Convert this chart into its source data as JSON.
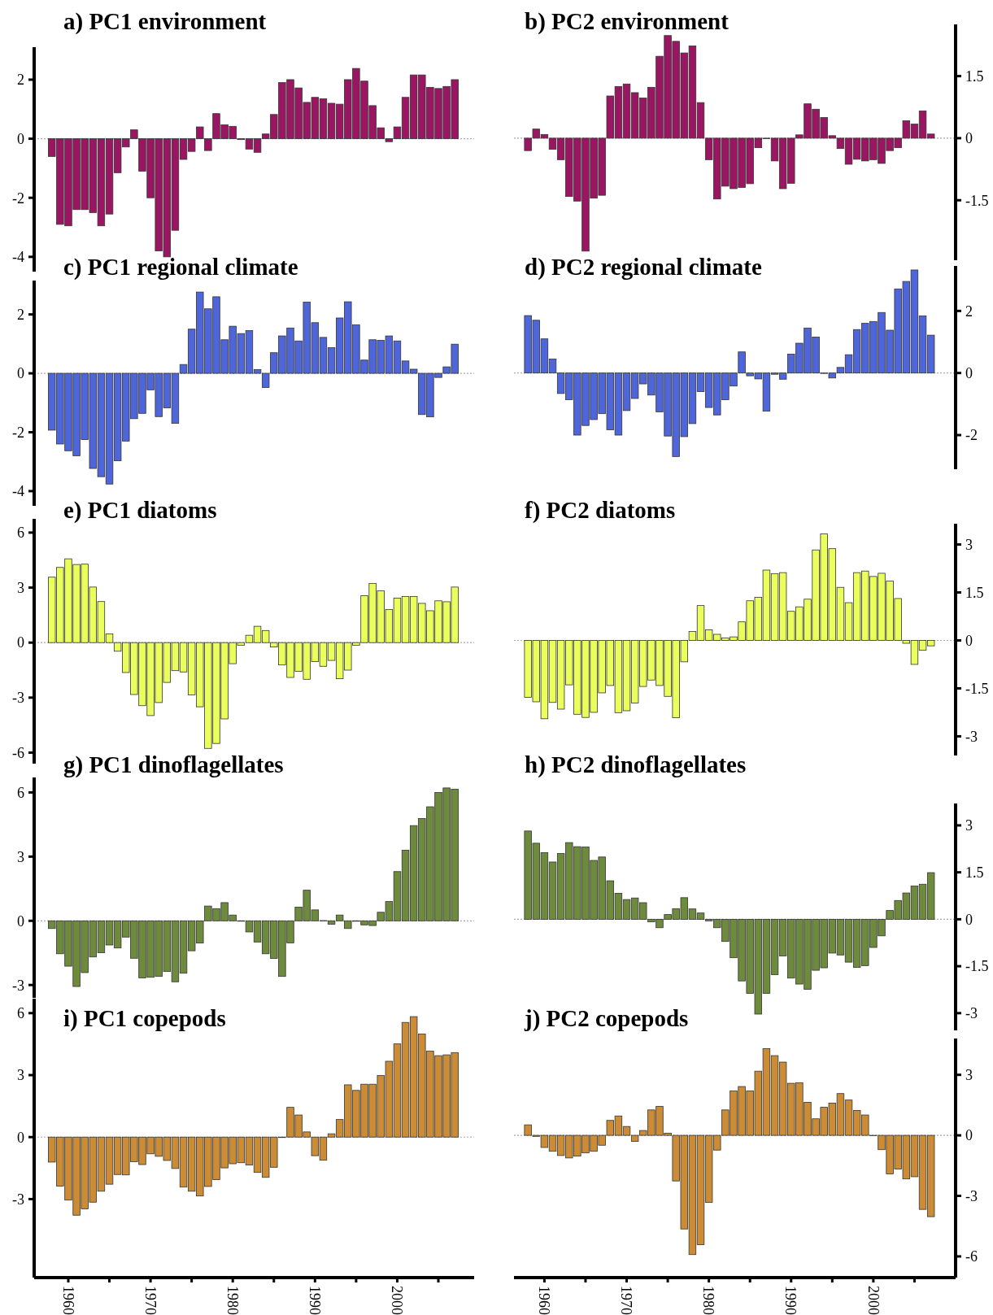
{
  "chart_data": [
    {
      "type": "bar",
      "title": "a) PC1 environment",
      "x": [
        1958,
        1959,
        1960,
        1961,
        1962,
        1963,
        1964,
        1965,
        1966,
        1967,
        1968,
        1969,
        1970,
        1971,
        1972,
        1973,
        1974,
        1975,
        1976,
        1977,
        1978,
        1979,
        1980,
        1981,
        1982,
        1983,
        1984,
        1985,
        1986,
        1987,
        1988,
        1989,
        1990,
        1991,
        1992,
        1993,
        1994,
        1995,
        1996,
        1997,
        1998,
        1999,
        2000,
        2001,
        2002,
        2003,
        2004,
        2005,
        2006,
        2007
      ],
      "series": [
        {
          "color": "#9b1662",
          "values": [
            -0.6,
            -2.9,
            -2.95,
            -2.4,
            -2.4,
            -2.5,
            -2.95,
            -2.55,
            -1.15,
            -0.28,
            0.3,
            -1.1,
            -2.0,
            -3.8,
            -4.0,
            -3.1,
            -0.7,
            -0.43,
            0.4,
            -0.4,
            0.85,
            0.47,
            0.42,
            -0.03,
            -0.35,
            -0.46,
            0.16,
            0.82,
            1.9,
            2.0,
            1.72,
            1.23,
            1.4,
            1.35,
            1.2,
            1.17,
            2.0,
            2.38,
            1.95,
            1.12,
            0.37,
            -0.1,
            0.4,
            1.4,
            2.16,
            2.16,
            1.74,
            1.7,
            1.77,
            2.0
          ]
        }
      ],
      "xlim": [
        1955.85,
        2009.35
      ],
      "ylim": [
        -4.5,
        3.1
      ],
      "yticks": [
        -4,
        -2,
        0,
        2
      ],
      "tick_labels": "y",
      "ref_lines": [
        {
          "axis": "y",
          "value": 0,
          "color": "#aaaaaa",
          "line_style": "dotted"
        }
      ]
    },
    {
      "type": "bar",
      "title": "b) PC2 environment",
      "x": [
        1958,
        1959,
        1960,
        1961,
        1962,
        1963,
        1964,
        1965,
        1966,
        1967,
        1968,
        1969,
        1970,
        1971,
        1972,
        1973,
        1974,
        1975,
        1976,
        1977,
        1978,
        1979,
        1980,
        1981,
        1982,
        1983,
        1984,
        1985,
        1986,
        1987,
        1988,
        1989,
        1990,
        1991,
        1992,
        1993,
        1994,
        1995,
        1996,
        1997,
        1998,
        1999,
        2000,
        2001,
        2002,
        2003,
        2004,
        2005,
        2006,
        2007
      ],
      "series": [
        {
          "color": "#9b1662",
          "axis": "y2",
          "values": [
            -0.3,
            0.22,
            0.09,
            -0.27,
            -0.52,
            -1.41,
            -1.52,
            -2.73,
            -1.45,
            -1.38,
            1.02,
            1.25,
            1.31,
            1.1,
            0.97,
            1.23,
            1.98,
            2.48,
            2.34,
            2.06,
            2.23,
            0.86,
            -0.52,
            -1.47,
            -1.16,
            -1.22,
            -1.19,
            -1.1,
            -0.23,
            -0.01,
            -0.55,
            -1.22,
            -1.09,
            0.08,
            0.83,
            0.7,
            0.5,
            0.06,
            -0.25,
            -0.63,
            -0.51,
            -0.55,
            -0.52,
            -0.61,
            -0.3,
            -0.23,
            0.42,
            0.34,
            0.66,
            0.1
          ]
        }
      ],
      "xlim": [
        1956.3,
        2010.0
      ],
      "y2lim": [
        -2.95,
        2.75
      ],
      "y2ticks": [
        -1.5,
        0,
        1.5
      ],
      "tick_labels": "y",
      "ref_lines": [
        {
          "axis": "y2",
          "value": 0,
          "color": "#aaaaaa",
          "line_style": "dotted"
        }
      ]
    },
    {
      "type": "bar",
      "title": "c) PC1 regional climate",
      "x": [
        1958,
        1959,
        1960,
        1961,
        1962,
        1963,
        1964,
        1965,
        1966,
        1967,
        1968,
        1969,
        1970,
        1971,
        1972,
        1973,
        1974,
        1975,
        1976,
        1977,
        1978,
        1979,
        1980,
        1981,
        1982,
        1983,
        1984,
        1985,
        1986,
        1987,
        1988,
        1989,
        1990,
        1991,
        1992,
        1993,
        1994,
        1995,
        1996,
        1997,
        1998,
        1999,
        2000,
        2001,
        2002,
        2003,
        2004,
        2005,
        2006,
        2007
      ],
      "series": [
        {
          "color": "#4f66db",
          "values": [
            -1.93,
            -2.4,
            -2.63,
            -2.8,
            -2.25,
            -3.23,
            -3.51,
            -3.76,
            -2.97,
            -2.3,
            -1.54,
            -1.36,
            -0.56,
            -1.47,
            -1.17,
            -1.7,
            0.3,
            1.5,
            2.76,
            2.19,
            2.6,
            1.14,
            1.6,
            1.35,
            1.45,
            0.13,
            -0.48,
            0.7,
            1.27,
            1.54,
            1.1,
            2.42,
            1.72,
            1.22,
            0.87,
            1.88,
            2.43,
            1.65,
            0.45,
            1.14,
            1.12,
            1.27,
            1.1,
            0.42,
            0.14,
            -1.4,
            -1.48,
            -0.14,
            0.22,
            0.99
          ]
        }
      ],
      "xlim": [
        1955.85,
        2009.35
      ],
      "ylim": [
        -4.5,
        3.15
      ],
      "yticks": [
        -4,
        -2,
        0,
        2
      ],
      "tick_labels": "y",
      "ref_lines": [
        {
          "axis": "y",
          "value": 0,
          "color": "#aaaaaa",
          "line_style": "dotted"
        }
      ]
    },
    {
      "type": "bar",
      "title": "d) PC2 regional climate",
      "x": [
        1958,
        1959,
        1960,
        1961,
        1962,
        1963,
        1964,
        1965,
        1966,
        1967,
        1968,
        1969,
        1970,
        1971,
        1972,
        1973,
        1974,
        1975,
        1976,
        1977,
        1978,
        1979,
        1980,
        1981,
        1982,
        1983,
        1984,
        1985,
        1986,
        1987,
        1988,
        1989,
        1990,
        1991,
        1992,
        1993,
        1994,
        1995,
        1996,
        1997,
        1998,
        1999,
        2000,
        2001,
        2002,
        2003,
        2004,
        2005,
        2006,
        2007
      ],
      "series": [
        {
          "color": "#4f66db",
          "axis": "y2",
          "values": [
            1.85,
            1.7,
            1.1,
            0.45,
            -0.66,
            -0.86,
            -2.0,
            -1.69,
            -1.5,
            -1.31,
            -1.83,
            -2.0,
            -1.21,
            -0.82,
            -0.35,
            -0.71,
            -1.25,
            -2.03,
            -2.69,
            -2.05,
            -1.63,
            -0.6,
            -1.11,
            -1.35,
            -0.86,
            -0.42,
            0.68,
            -0.09,
            -0.19,
            -1.23,
            -0.04,
            -0.2,
            0.61,
            0.96,
            1.45,
            1.16,
            0.0,
            -0.16,
            0.18,
            0.59,
            1.4,
            1.6,
            1.66,
            1.95,
            1.38,
            2.71,
            2.95,
            3.32,
            1.84,
            1.22
          ]
        }
      ],
      "xlim": [
        1956.3,
        2010.0
      ],
      "y2lim": [
        -3.1,
        3.45
      ],
      "y2ticks": [
        -2,
        0,
        2
      ],
      "tick_labels": "y",
      "ref_lines": [
        {
          "axis": "y2",
          "value": 0,
          "color": "#aaaaaa",
          "line_style": "dotted"
        }
      ]
    },
    {
      "type": "bar",
      "title": "e) PC1 diatoms",
      "x": [
        1958,
        1959,
        1960,
        1961,
        1962,
        1963,
        1964,
        1965,
        1966,
        1967,
        1968,
        1969,
        1970,
        1971,
        1972,
        1973,
        1974,
        1975,
        1976,
        1977,
        1978,
        1979,
        1980,
        1981,
        1982,
        1983,
        1984,
        1985,
        1986,
        1987,
        1988,
        1989,
        1990,
        1991,
        1992,
        1993,
        1994,
        1995,
        1996,
        1997,
        1998,
        1999,
        2000,
        2001,
        2002,
        2003,
        2004,
        2005,
        2006,
        2007
      ],
      "series": [
        {
          "color": "#eaff5c",
          "values": [
            3.57,
            4.1,
            4.57,
            4.26,
            4.28,
            3.03,
            2.24,
            0.47,
            -0.47,
            -1.63,
            -2.83,
            -3.44,
            -3.98,
            -3.27,
            -2.17,
            -1.53,
            -1.6,
            -2.85,
            -3.5,
            -5.77,
            -5.5,
            -4.16,
            -1.15,
            -0.14,
            0.4,
            0.89,
            0.66,
            -0.24,
            -1.22,
            -1.9,
            -1.57,
            -2.0,
            -1.03,
            -1.29,
            -0.97,
            -1.97,
            -1.5,
            -0.14,
            2.56,
            3.23,
            2.83,
            1.81,
            2.43,
            2.52,
            2.52,
            2.14,
            1.74,
            2.28,
            2.23,
            3.03
          ]
        }
      ],
      "xlim": [
        1955.85,
        2009.35
      ],
      "ylim": [
        -6.6,
        6.75
      ],
      "yticks": [
        -6,
        -3,
        0,
        3,
        6
      ],
      "tick_labels": "y",
      "ref_lines": [
        {
          "axis": "y",
          "value": 0,
          "color": "#aaaaaa",
          "line_style": "dotted"
        }
      ]
    },
    {
      "type": "bar",
      "title": "f) PC2 diatoms",
      "x": [
        1958,
        1959,
        1960,
        1961,
        1962,
        1963,
        1964,
        1965,
        1966,
        1967,
        1968,
        1969,
        1970,
        1971,
        1972,
        1973,
        1974,
        1975,
        1976,
        1977,
        1978,
        1979,
        1980,
        1981,
        1982,
        1983,
        1984,
        1985,
        1986,
        1987,
        1988,
        1989,
        1990,
        1991,
        1992,
        1993,
        1994,
        1995,
        1996,
        1997,
        1998,
        1999,
        2000,
        2001,
        2002,
        2003,
        2004,
        2005,
        2006,
        2007
      ],
      "series": [
        {
          "color": "#eaff5c",
          "axis": "y2",
          "values": [
            -1.78,
            -1.92,
            -2.45,
            -1.94,
            -2.15,
            -1.39,
            -2.31,
            -2.41,
            -2.25,
            -1.64,
            -1.41,
            -2.26,
            -2.2,
            -1.96,
            -1.44,
            -1.24,
            -1.41,
            -1.75,
            -2.42,
            -0.67,
            0.28,
            1.09,
            0.33,
            0.19,
            0.08,
            0.11,
            0.58,
            1.24,
            1.35,
            2.2,
            2.09,
            2.12,
            0.91,
            1.05,
            1.29,
            2.83,
            3.33,
            2.87,
            1.66,
            1.18,
            2.12,
            2.17,
            2.0,
            2.1,
            1.86,
            1.31,
            -0.09,
            -0.75,
            -0.31,
            -0.17
          ]
        }
      ],
      "xlim": [
        1956.3,
        2010.0
      ],
      "y2lim": [
        -3.6,
        3.65
      ],
      "y2ticks": [
        -3,
        -1.5,
        0,
        1.5,
        3
      ],
      "tick_labels": "y",
      "ref_lines": [
        {
          "axis": "y2",
          "value": 0,
          "color": "#aaaaaa",
          "line_style": "dotted"
        }
      ]
    },
    {
      "type": "bar",
      "title": "g) PC1 dinoflagellates",
      "x": [
        1958,
        1959,
        1960,
        1961,
        1962,
        1963,
        1964,
        1965,
        1966,
        1967,
        1968,
        1969,
        1970,
        1971,
        1972,
        1973,
        1974,
        1975,
        1976,
        1977,
        1978,
        1979,
        1980,
        1981,
        1982,
        1983,
        1984,
        1985,
        1986,
        1987,
        1988,
        1989,
        1990,
        1991,
        1992,
        1993,
        1994,
        1995,
        1996,
        1997,
        1998,
        1999,
        2000,
        2001,
        2002,
        2003,
        2004,
        2005,
        2006,
        2007
      ],
      "series": [
        {
          "color": "#6e8b3d",
          "values": [
            -0.36,
            -1.54,
            -2.12,
            -3.07,
            -2.42,
            -1.69,
            -1.49,
            -1.13,
            -1.27,
            -0.76,
            -1.75,
            -2.67,
            -2.64,
            -2.6,
            -2.37,
            -2.85,
            -2.45,
            -1.4,
            -1.04,
            0.69,
            0.57,
            0.85,
            0.27,
            -0.01,
            -0.52,
            -0.99,
            -1.54,
            -1.76,
            -2.6,
            -1.03,
            0.64,
            1.43,
            0.51,
            0.01,
            -0.16,
            0.27,
            -0.36,
            -0.02,
            -0.19,
            -0.22,
            0.4,
            0.9,
            2.3,
            3.3,
            4.45,
            4.78,
            5.33,
            6.0,
            6.21,
            6.15
          ]
        }
      ],
      "xlim": [
        1955.85,
        2009.35
      ],
      "ylim": [
        -3.6,
        6.7
      ],
      "yticks": [
        -3,
        0,
        3,
        6
      ],
      "tick_labels": "y",
      "ref_lines": [
        {
          "axis": "y",
          "value": 0,
          "color": "#aaaaaa",
          "line_style": "dotted"
        }
      ]
    },
    {
      "type": "bar",
      "title": "h) PC2 dinoflagellates",
      "x": [
        1958,
        1959,
        1960,
        1961,
        1962,
        1963,
        1964,
        1965,
        1966,
        1967,
        1968,
        1969,
        1970,
        1971,
        1972,
        1973,
        1974,
        1975,
        1976,
        1977,
        1978,
        1979,
        1980,
        1981,
        1982,
        1983,
        1984,
        1985,
        1986,
        1987,
        1988,
        1989,
        1990,
        1991,
        1992,
        1993,
        1994,
        1995,
        1996,
        1997,
        1998,
        1999,
        2000,
        2001,
        2002,
        2003,
        2004,
        2005,
        2006,
        2007
      ],
      "series": [
        {
          "color": "#6e8b3d",
          "axis": "y2",
          "values": [
            2.82,
            2.43,
            2.13,
            1.83,
            2.1,
            2.45,
            2.32,
            2.31,
            1.88,
            1.99,
            1.23,
            0.83,
            0.63,
            0.68,
            0.53,
            -0.08,
            -0.27,
            0.15,
            0.34,
            0.69,
            0.33,
            0.2,
            -0.05,
            -0.27,
            -0.71,
            -1.23,
            -1.97,
            -2.37,
            -3.03,
            -2.37,
            -1.77,
            -1.17,
            -1.88,
            -2.07,
            -2.24,
            -1.63,
            -1.55,
            -1.08,
            -1.14,
            -1.37,
            -1.54,
            -1.48,
            -0.9,
            -0.53,
            0.28,
            0.6,
            0.84,
            1.06,
            1.12,
            1.49
          ]
        }
      ],
      "xlim": [
        1956.3,
        2010.0
      ],
      "y2lim": [
        -3.55,
        3.7
      ],
      "y2ticks": [
        -3,
        -1.5,
        0,
        1.5,
        3
      ],
      "tick_labels": "y",
      "ref_lines": [
        {
          "axis": "y2",
          "value": 0,
          "color": "#aaaaaa",
          "line_style": "dotted"
        }
      ]
    },
    {
      "type": "bar",
      "title": "i) PC1 copepods",
      "x": [
        1958,
        1959,
        1960,
        1961,
        1962,
        1963,
        1964,
        1965,
        1966,
        1967,
        1968,
        1969,
        1970,
        1971,
        1972,
        1973,
        1974,
        1975,
        1976,
        1977,
        1978,
        1979,
        1980,
        1981,
        1982,
        1983,
        1984,
        1985,
        1986,
        1987,
        1988,
        1989,
        1990,
        1991,
        1992,
        1993,
        1994,
        1995,
        1996,
        1997,
        1998,
        1999,
        2000,
        2001,
        2002,
        2003,
        2004,
        2005,
        2006,
        2007
      ],
      "series": [
        {
          "color": "#cc8c36",
          "values": [
            -1.21,
            -2.37,
            -3.05,
            -3.78,
            -3.47,
            -3.15,
            -2.62,
            -2.28,
            -1.81,
            -1.83,
            -1.19,
            -1.33,
            -0.81,
            -0.93,
            -1.13,
            -1.52,
            -2.42,
            -2.62,
            -2.85,
            -2.39,
            -2.06,
            -1.49,
            -1.29,
            -1.24,
            -1.35,
            -1.71,
            -1.95,
            -1.46,
            -0.02,
            1.44,
            1.07,
            0.25,
            -0.9,
            -1.12,
            0.16,
            0.85,
            2.53,
            2.26,
            2.56,
            2.56,
            2.98,
            3.67,
            4.51,
            5.55,
            5.83,
            4.99,
            4.16,
            3.94,
            3.98,
            4.09
          ]
        }
      ],
      "xlim": [
        1955.85,
        2009.35
      ],
      "xticks": [
        1960,
        {
          "value": 1965,
          "label": null
        },
        1970,
        {
          "value": 1975,
          "label": null
        },
        1980,
        {
          "value": 1985,
          "label": null
        },
        1990,
        {
          "value": 1995,
          "label": null
        },
        2000,
        {
          "value": 2005,
          "label": null
        }
      ],
      "ylim": [
        -6.8,
        6.7
      ],
      "yticks": [
        -3,
        0,
        3,
        6
      ],
      "ref_lines": [
        {
          "axis": "y",
          "value": 0,
          "color": "#aaaaaa",
          "line_style": "dotted"
        }
      ]
    },
    {
      "type": "bar",
      "title": "j) PC2 copepods",
      "x": [
        1958,
        1959,
        1960,
        1961,
        1962,
        1963,
        1964,
        1965,
        1966,
        1967,
        1968,
        1969,
        1970,
        1971,
        1972,
        1973,
        1974,
        1975,
        1976,
        1977,
        1978,
        1979,
        1980,
        1981,
        1982,
        1983,
        1984,
        1985,
        1986,
        1987,
        1988,
        1989,
        1990,
        1991,
        1992,
        1993,
        1994,
        1995,
        1996,
        1997,
        1998,
        1999,
        2000,
        2001,
        2002,
        2003,
        2004,
        2005,
        2006,
        2007
      ],
      "series": [
        {
          "color": "#cc8c36",
          "axis": "y2",
          "values": [
            0.52,
            -0.05,
            -0.6,
            -0.79,
            -1.0,
            -1.12,
            -1.03,
            -0.87,
            -0.79,
            -0.49,
            0.74,
            0.96,
            0.44,
            -0.3,
            0.24,
            1.26,
            1.44,
            0.11,
            -2.26,
            -4.64,
            -5.91,
            -5.42,
            -3.32,
            -0.73,
            1.26,
            2.2,
            2.42,
            2.2,
            3.18,
            4.3,
            3.95,
            3.63,
            2.58,
            2.61,
            1.64,
            0.82,
            1.39,
            1.6,
            2.07,
            1.75,
            1.23,
            1.01,
            0.0,
            -0.71,
            -1.91,
            -1.67,
            -2.16,
            -2.05,
            -3.67,
            -4.03
          ]
        }
      ],
      "xlim": [
        1956.3,
        2010.0
      ],
      "xticks": [
        1960,
        {
          "value": 1965,
          "label": null
        },
        1970,
        {
          "value": 1975,
          "label": null
        },
        1980,
        {
          "value": 1985,
          "label": null
        },
        1990,
        {
          "value": 1995,
          "label": null
        },
        2000,
        {
          "value": 2005,
          "label": null
        }
      ],
      "y2lim": [
        -7.05,
        4.8
      ],
      "y2ticks": [
        -6,
        -3,
        0,
        3
      ],
      "ref_lines": [
        {
          "axis": "y2",
          "value": 0,
          "color": "#aaaaaa",
          "line_style": "dotted"
        }
      ]
    }
  ]
}
